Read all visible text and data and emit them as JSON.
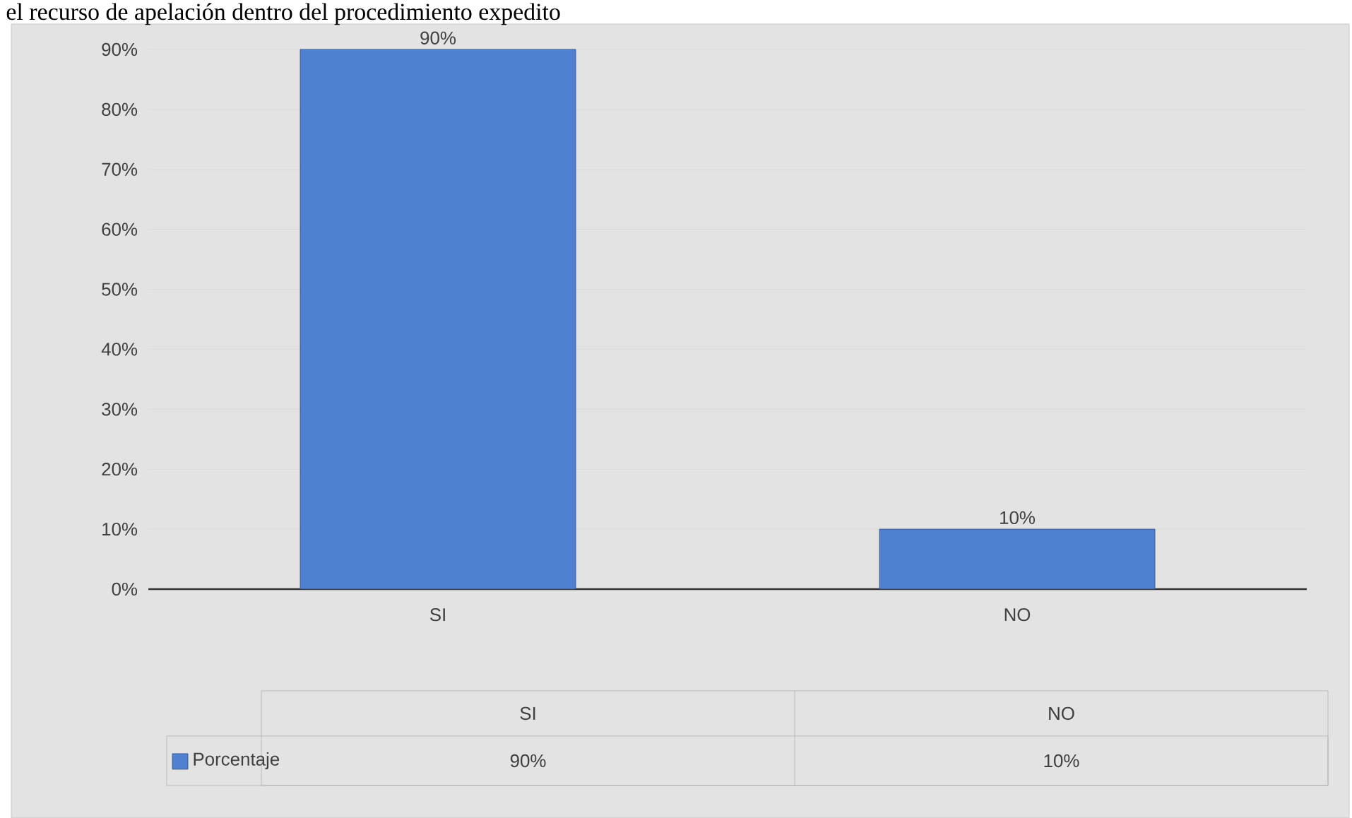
{
  "chart_data": {
    "type": "bar",
    "title": "el recurso de apelación dentro del procedimiento expedito",
    "categories": [
      "SI",
      "NO"
    ],
    "series": [
      {
        "name": "Porcentaje",
        "color": "#5080d0",
        "values": [
          90,
          10
        ],
        "value_labels": [
          "90%",
          "10%"
        ]
      }
    ],
    "ylim": [
      0,
      90
    ],
    "yticks": [
      {
        "value": 0,
        "label": "0%"
      },
      {
        "value": 10,
        "label": "10%"
      },
      {
        "value": 20,
        "label": "20%"
      },
      {
        "value": 30,
        "label": "30%"
      },
      {
        "value": 40,
        "label": "40%"
      },
      {
        "value": 50,
        "label": "50%"
      },
      {
        "value": 60,
        "label": "60%"
      },
      {
        "value": 70,
        "label": "70%"
      },
      {
        "value": 80,
        "label": "80%"
      },
      {
        "value": 90,
        "label": "90%"
      }
    ],
    "grid": "y",
    "legend": "bottom"
  }
}
